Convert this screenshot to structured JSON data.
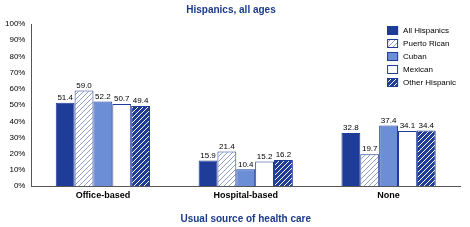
{
  "chart_data": {
    "type": "bar",
    "title": "Hispanics, all ages",
    "x_label": "Usual source of health care",
    "categories": [
      "Office-based",
      "Hospital-based",
      "None"
    ],
    "series": [
      {
        "name": "All Hispanics",
        "color": "#1f3c98",
        "values": [
          51.4,
          15.9,
          32.8
        ],
        "value_labels": [
          "51.4",
          "15.9",
          "32.8"
        ]
      },
      {
        "name": "Puerto Rican",
        "color": "#ffffff",
        "values": [
          59.0,
          21.4,
          19.7
        ],
        "value_labels": [
          "59.0",
          "21.4",
          "19.7"
        ]
      },
      {
        "name": "Cuban",
        "color": "#6b8ed6",
        "values": [
          52.2,
          10.4,
          37.4
        ],
        "value_labels": [
          "52.2",
          "10.4",
          "37.4"
        ]
      },
      {
        "name": "Mexican",
        "color": "#ffffff",
        "values": [
          50.7,
          15.2,
          34.1
        ],
        "value_labels": [
          "50.7",
          "15.2",
          "34.1"
        ]
      },
      {
        "name": "Other Hispanic",
        "color": "#1f3c98",
        "values": [
          49.4,
          16.2,
          34.4
        ],
        "value_labels": [
          "49.4",
          "16.2",
          "34.4"
        ]
      }
    ],
    "ylim": [
      0,
      100
    ],
    "yticks": [
      {
        "value": 0,
        "label": "0%"
      },
      {
        "value": 10,
        "label": "10%"
      },
      {
        "value": 20,
        "label": "20%"
      },
      {
        "value": 30,
        "label": "30%"
      },
      {
        "value": 40,
        "label": "40%"
      },
      {
        "value": 50,
        "label": "50%"
      },
      {
        "value": 60,
        "label": "60%"
      },
      {
        "value": 70,
        "label": "70%"
      },
      {
        "value": 80,
        "label": "80%"
      },
      {
        "value": 90,
        "label": "90%"
      },
      {
        "value": 100,
        "label": "100%"
      }
    ],
    "grid": false,
    "legend": "upper right",
    "data_labels": true
  }
}
